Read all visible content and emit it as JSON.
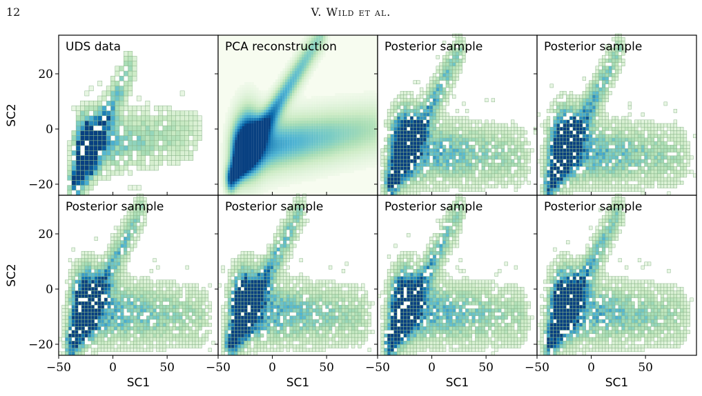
{
  "page": {
    "page_number": "12",
    "running_head": "V. Wild et al."
  },
  "figure": {
    "x_axis_label": "SC1",
    "y_axis_label": "SC2",
    "x_ticks": [
      -50,
      0,
      50
    ],
    "y_ticks": [
      20,
      0,
      -20
    ],
    "x_tick_labels": [
      "−50",
      "0",
      "50"
    ],
    "y_tick_labels": [
      "20",
      "0",
      "−20"
    ],
    "xlim": [
      -50,
      97
    ],
    "ylim": [
      -24,
      34
    ],
    "colormap": [
      "#f7fcf0",
      "#e0f3db",
      "#ccebc5",
      "#a8ddb5",
      "#7bccc4",
      "#4eb3d3",
      "#2b8cbe",
      "#0868ac",
      "#084081"
    ],
    "panel_titles": [
      "UDS data",
      "PCA reconstruction",
      "Posterior sample",
      "Posterior sample",
      "Posterior sample",
      "Posterior sample",
      "Posterior sample",
      "Posterior sample"
    ]
  },
  "chart_data": [
    {
      "type": "heatmap",
      "title": "UDS data",
      "xlabel": "",
      "ylabel": "SC2",
      "xlim": [
        -50,
        97
      ],
      "ylim": [
        -24,
        34
      ],
      "structure": "two-branch point density: narrow branch from (-35,-20) rising to (15,22); broad branch from (-20,-5) to (70,-2); highest density near (-25,-5)"
    },
    {
      "type": "heatmap",
      "title": "PCA reconstruction",
      "xlabel": "",
      "ylabel": "",
      "xlim": [
        -50,
        97
      ],
      "ylim": [
        -24,
        34
      ],
      "structure": "smooth density: steep arm to (45,34), broad arm to (90,0), peak near (-20,-3)"
    },
    {
      "type": "heatmap",
      "title": "Posterior sample",
      "xlabel": "",
      "ylabel": "",
      "xlim": [
        -50,
        97
      ],
      "ylim": [
        -24,
        34
      ],
      "structure": "sampled counts: steep arm to (25,28), broad arm to (80,-10), peak near (-25,-3)"
    },
    {
      "type": "heatmap",
      "title": "Posterior sample",
      "xlabel": "",
      "ylabel": "",
      "xlim": [
        -50,
        97
      ],
      "ylim": [
        -24,
        34
      ],
      "structure": "sampled counts: steep arm to (25,28), broad arm to (80,-10), peak near (-25,-3)"
    },
    {
      "type": "heatmap",
      "title": "Posterior sample",
      "xlabel": "SC1",
      "ylabel": "SC2",
      "xlim": [
        -50,
        97
      ],
      "ylim": [
        -24,
        34
      ],
      "structure": "sampled counts: steep arm to (25,28), broad arm to (80,-10), peak near (-25,-3)"
    },
    {
      "type": "heatmap",
      "title": "Posterior sample",
      "xlabel": "SC1",
      "ylabel": "",
      "xlim": [
        -50,
        97
      ],
      "ylim": [
        -24,
        34
      ],
      "structure": "sampled counts: steep arm to (25,28), broad arm to (80,-10), peak near (-25,-3)"
    },
    {
      "type": "heatmap",
      "title": "Posterior sample",
      "xlabel": "SC1",
      "ylabel": "",
      "xlim": [
        -50,
        97
      ],
      "ylim": [
        -24,
        34
      ],
      "structure": "sampled counts: steep arm to (25,28), broad arm to (80,-10), peak near (-25,-3)"
    },
    {
      "type": "heatmap",
      "title": "Posterior sample",
      "xlabel": "SC1",
      "ylabel": "",
      "xlim": [
        -50,
        97
      ],
      "ylim": [
        -24,
        34
      ],
      "structure": "sampled counts: steep arm to (25,28), broad arm to (80,-10), peak near (-25,-3)"
    }
  ]
}
